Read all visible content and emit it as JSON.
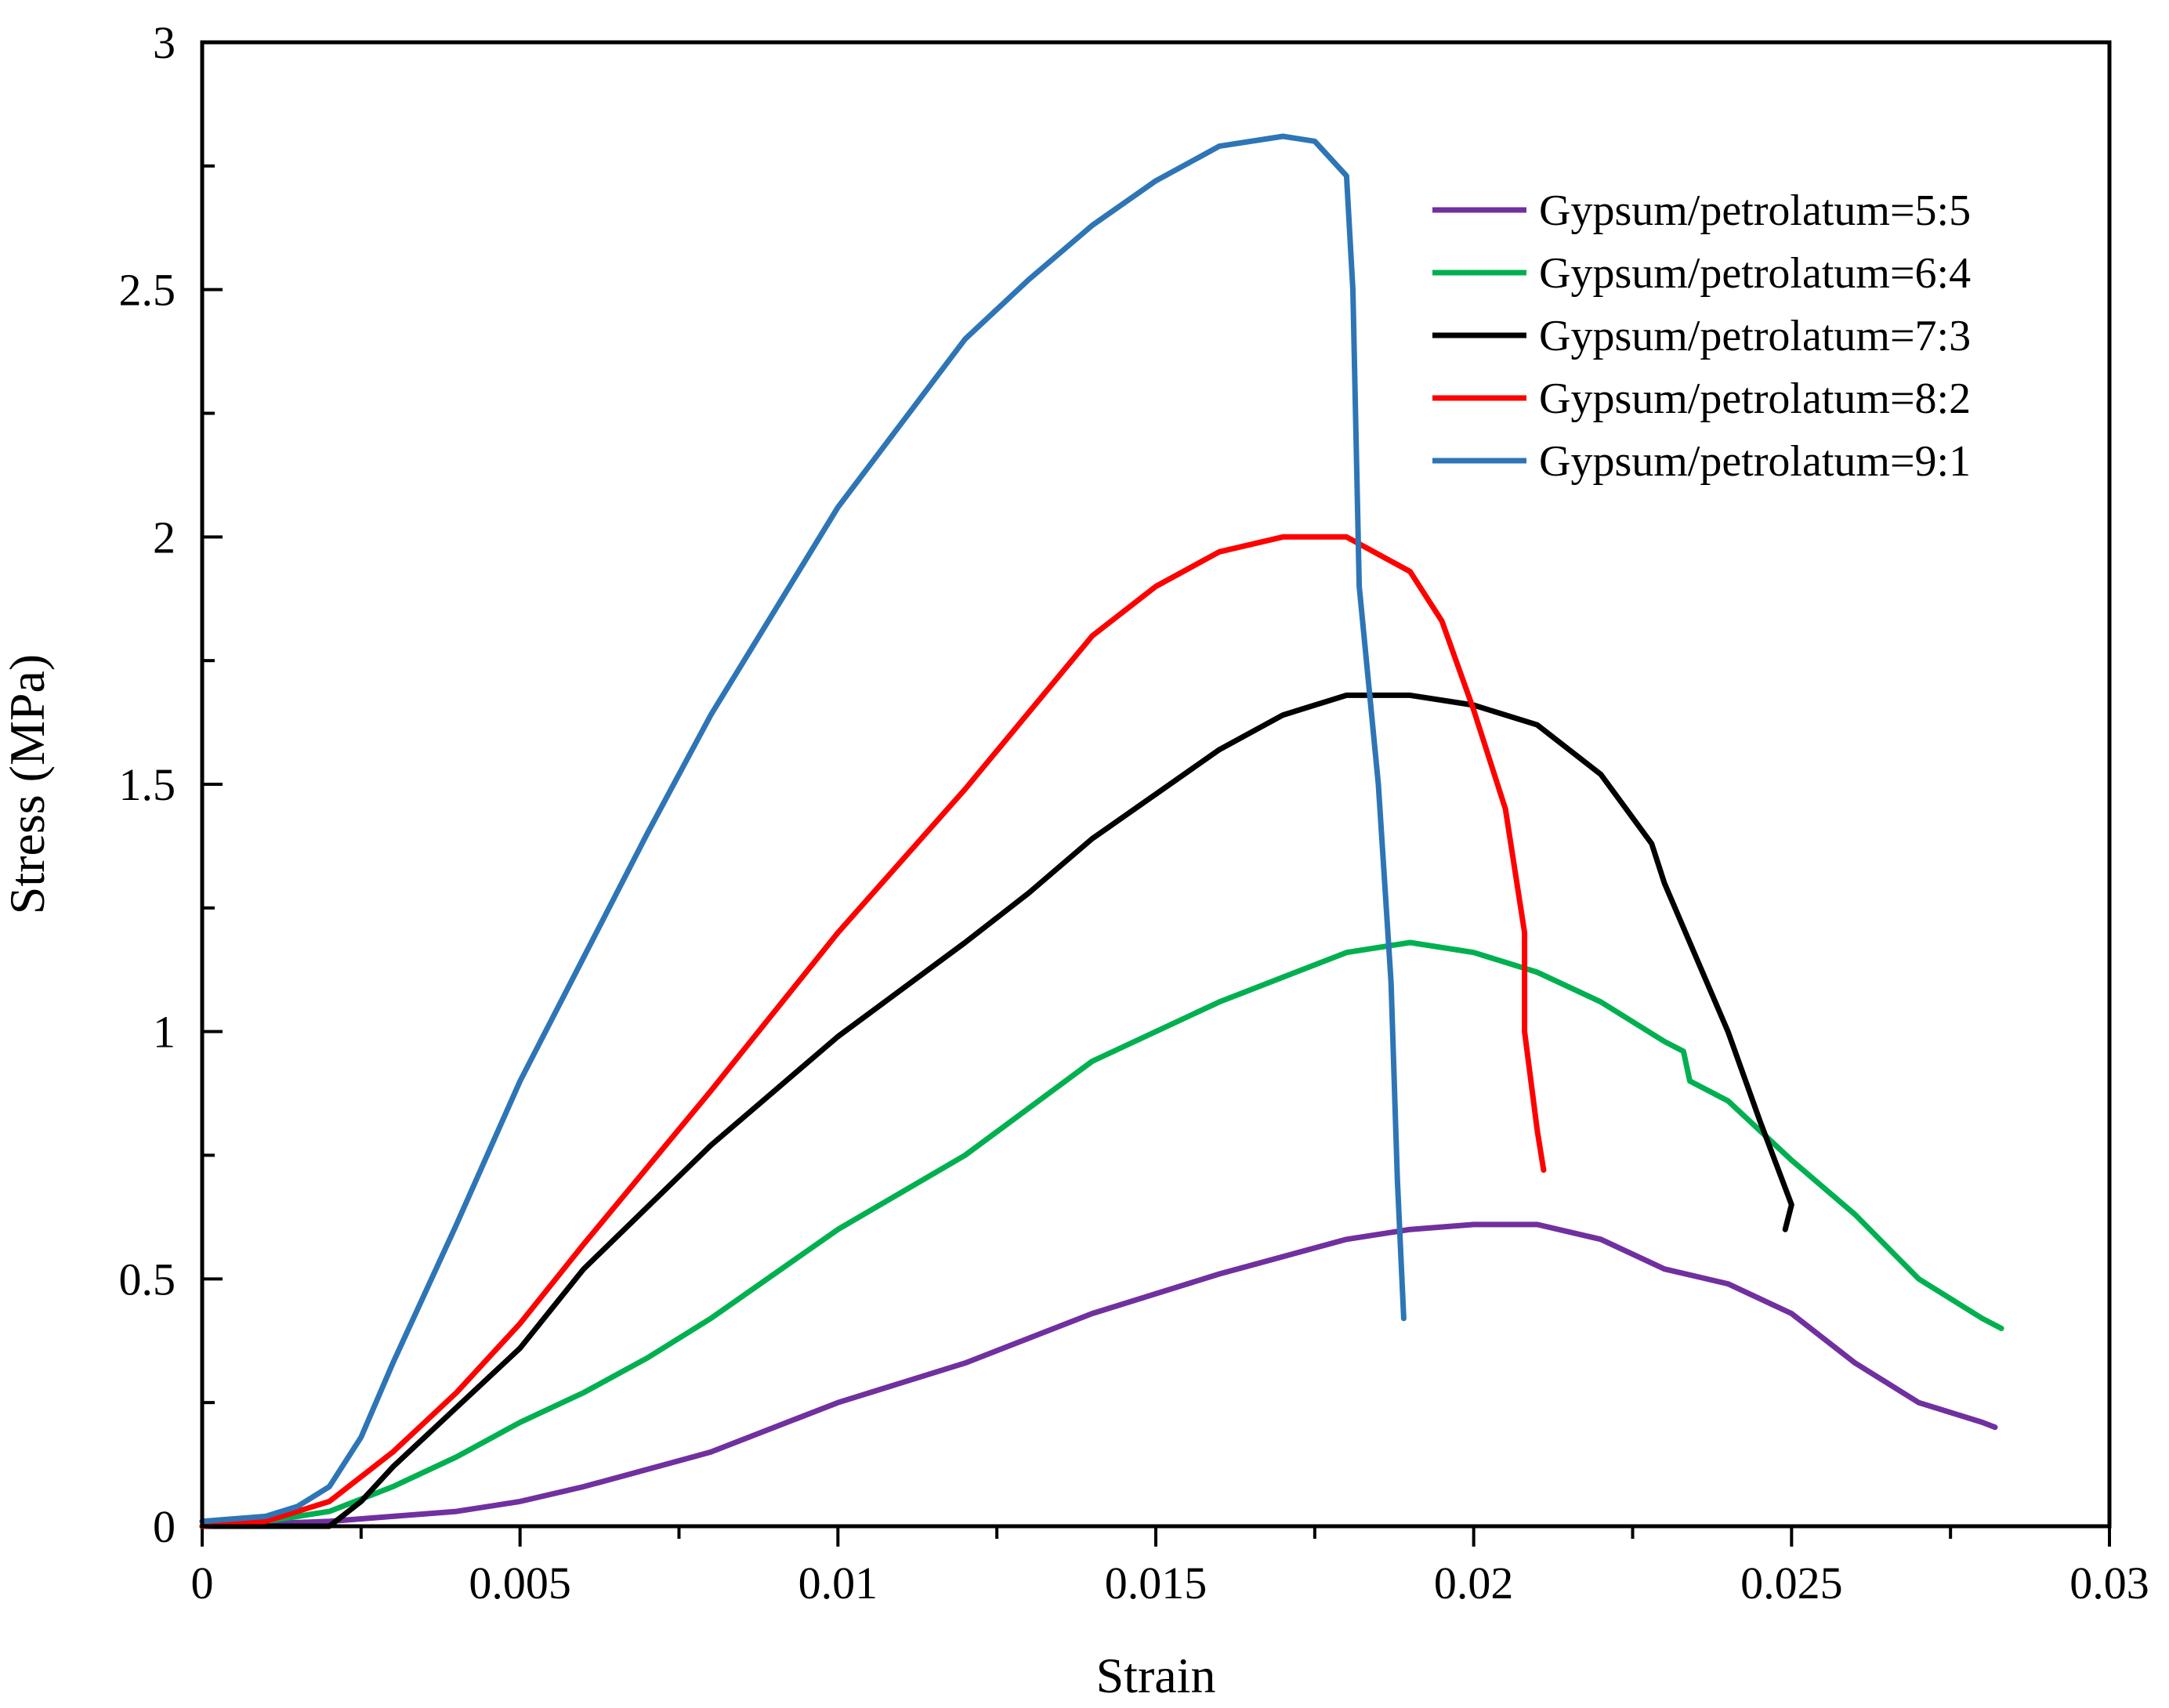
{
  "chart_data": {
    "type": "line",
    "title": "",
    "xlabel": "Strain",
    "ylabel": "Stress (MPa)",
    "xlim": [
      0,
      0.03
    ],
    "ylim": [
      0,
      3
    ],
    "x_ticks": [
      "0",
      "0.005",
      "0.01",
      "0.015",
      "0.02",
      "0.025",
      "0.03"
    ],
    "y_ticks": [
      "0",
      "0.5",
      "1",
      "1.5",
      "2",
      "2.5",
      "3"
    ],
    "legend_position": "top-right",
    "series": [
      {
        "name": "Gypsum/petrolatum=5:5",
        "color": "#7030A0",
        "points": [
          [
            0,
            0.0
          ],
          [
            0.002,
            0.01
          ],
          [
            0.003,
            0.02
          ],
          [
            0.004,
            0.03
          ],
          [
            0.005,
            0.05
          ],
          [
            0.006,
            0.08
          ],
          [
            0.008,
            0.15
          ],
          [
            0.01,
            0.25
          ],
          [
            0.012,
            0.33
          ],
          [
            0.014,
            0.43
          ],
          [
            0.016,
            0.51
          ],
          [
            0.018,
            0.58
          ],
          [
            0.019,
            0.6
          ],
          [
            0.02,
            0.61
          ],
          [
            0.021,
            0.61
          ],
          [
            0.022,
            0.58
          ],
          [
            0.023,
            0.52
          ],
          [
            0.024,
            0.49
          ],
          [
            0.025,
            0.43
          ],
          [
            0.026,
            0.33
          ],
          [
            0.027,
            0.25
          ],
          [
            0.028,
            0.21
          ],
          [
            0.0282,
            0.2
          ]
        ]
      },
      {
        "name": "Gypsum/petrolatum=6:4",
        "color": "#00B050",
        "points": [
          [
            0,
            0.01
          ],
          [
            0.001,
            0.01
          ],
          [
            0.002,
            0.03
          ],
          [
            0.003,
            0.08
          ],
          [
            0.004,
            0.14
          ],
          [
            0.005,
            0.21
          ],
          [
            0.006,
            0.27
          ],
          [
            0.007,
            0.34
          ],
          [
            0.008,
            0.42
          ],
          [
            0.01,
            0.6
          ],
          [
            0.012,
            0.75
          ],
          [
            0.014,
            0.94
          ],
          [
            0.016,
            1.06
          ],
          [
            0.018,
            1.16
          ],
          [
            0.019,
            1.18
          ],
          [
            0.02,
            1.16
          ],
          [
            0.021,
            1.12
          ],
          [
            0.022,
            1.06
          ],
          [
            0.023,
            0.98
          ],
          [
            0.0233,
            0.96
          ],
          [
            0.0234,
            0.9
          ],
          [
            0.024,
            0.86
          ],
          [
            0.025,
            0.74
          ],
          [
            0.026,
            0.63
          ],
          [
            0.027,
            0.5
          ],
          [
            0.028,
            0.42
          ],
          [
            0.0283,
            0.4
          ]
        ]
      },
      {
        "name": "Gypsum/petrolatum=7:3",
        "color": "#000000",
        "points": [
          [
            0,
            0.0
          ],
          [
            0.002,
            0.0
          ],
          [
            0.0025,
            0.05
          ],
          [
            0.003,
            0.12
          ],
          [
            0.004,
            0.24
          ],
          [
            0.005,
            0.36
          ],
          [
            0.006,
            0.52
          ],
          [
            0.008,
            0.77
          ],
          [
            0.01,
            0.99
          ],
          [
            0.012,
            1.18
          ],
          [
            0.013,
            1.28
          ],
          [
            0.014,
            1.39
          ],
          [
            0.015,
            1.48
          ],
          [
            0.016,
            1.57
          ],
          [
            0.017,
            1.64
          ],
          [
            0.018,
            1.68
          ],
          [
            0.019,
            1.68
          ],
          [
            0.02,
            1.66
          ],
          [
            0.021,
            1.62
          ],
          [
            0.022,
            1.52
          ],
          [
            0.0228,
            1.38
          ],
          [
            0.023,
            1.3
          ],
          [
            0.0235,
            1.15
          ],
          [
            0.024,
            1.0
          ],
          [
            0.0245,
            0.82
          ],
          [
            0.025,
            0.65
          ],
          [
            0.0249,
            0.6
          ]
        ]
      },
      {
        "name": "Gypsum/petrolatum=8:2",
        "color": "#FF0000",
        "points": [
          [
            0,
            0.0
          ],
          [
            0.001,
            0.01
          ],
          [
            0.002,
            0.05
          ],
          [
            0.003,
            0.15
          ],
          [
            0.004,
            0.27
          ],
          [
            0.005,
            0.41
          ],
          [
            0.006,
            0.57
          ],
          [
            0.008,
            0.88
          ],
          [
            0.01,
            1.2
          ],
          [
            0.012,
            1.49
          ],
          [
            0.014,
            1.8
          ],
          [
            0.015,
            1.9
          ],
          [
            0.016,
            1.97
          ],
          [
            0.017,
            2.0
          ],
          [
            0.018,
            2.0
          ],
          [
            0.019,
            1.93
          ],
          [
            0.0195,
            1.83
          ],
          [
            0.02,
            1.65
          ],
          [
            0.0205,
            1.45
          ],
          [
            0.0208,
            1.2
          ],
          [
            0.0208,
            1.0
          ],
          [
            0.021,
            0.8
          ],
          [
            0.0211,
            0.72
          ]
        ]
      },
      {
        "name": "Gypsum/petrolatum=9:1",
        "color": "#2E75B6",
        "points": [
          [
            0,
            0.01
          ],
          [
            0.001,
            0.02
          ],
          [
            0.0015,
            0.04
          ],
          [
            0.002,
            0.08
          ],
          [
            0.0025,
            0.18
          ],
          [
            0.003,
            0.33
          ],
          [
            0.004,
            0.61
          ],
          [
            0.005,
            0.9
          ],
          [
            0.006,
            1.15
          ],
          [
            0.007,
            1.4
          ],
          [
            0.008,
            1.64
          ],
          [
            0.01,
            2.06
          ],
          [
            0.012,
            2.4
          ],
          [
            0.013,
            2.52
          ],
          [
            0.014,
            2.63
          ],
          [
            0.015,
            2.72
          ],
          [
            0.016,
            2.79
          ],
          [
            0.017,
            2.81
          ],
          [
            0.0175,
            2.8
          ],
          [
            0.018,
            2.73
          ],
          [
            0.0181,
            2.5
          ],
          [
            0.0182,
            1.9
          ],
          [
            0.0185,
            1.5
          ],
          [
            0.0187,
            1.1
          ],
          [
            0.0188,
            0.7
          ],
          [
            0.0189,
            0.42
          ]
        ]
      }
    ]
  }
}
